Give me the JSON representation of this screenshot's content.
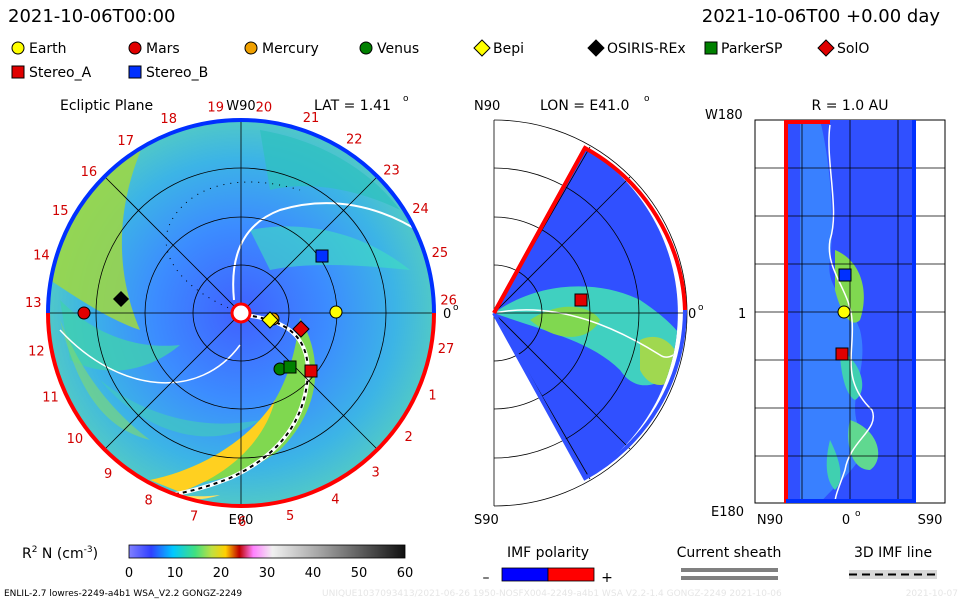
{
  "header": {
    "datetime": "2021-10-06T00:00",
    "forecast": "2021-10-06T00 +0.00 day"
  },
  "legend": {
    "items": [
      {
        "label": "Earth",
        "marker": "circle",
        "color": "#ffff00"
      },
      {
        "label": "Mars",
        "marker": "circle",
        "color": "#e00000"
      },
      {
        "label": "Mercury",
        "marker": "circle",
        "color": "#f0a000"
      },
      {
        "label": "Venus",
        "marker": "circle",
        "color": "#008000"
      },
      {
        "label": "Bepi",
        "marker": "diamond",
        "color": "#ffff00"
      },
      {
        "label": "OSIRIS-REx",
        "marker": "diamond",
        "color": "#000000"
      },
      {
        "label": "ParkerSP",
        "marker": "square",
        "color": "#008000"
      },
      {
        "label": "SolO",
        "marker": "diamond",
        "color": "#e00000"
      },
      {
        "label": "Stereo_A",
        "marker": "square",
        "color": "#e00000"
      },
      {
        "label": "Stereo_B",
        "marker": "square",
        "color": "#0030ff"
      }
    ]
  },
  "ecliptic": {
    "title": "Ecliptic Plane",
    "lat": "LAT = 1.41",
    "lat_deg": "o",
    "top_label": "W90",
    "bottom_label": "E90",
    "right_label": "0",
    "right_deg": "o",
    "carrington": [
      "19",
      "20",
      "21",
      "22",
      "23",
      "24",
      "25",
      "26",
      "27",
      "1",
      "2",
      "3",
      "4",
      "5",
      "6",
      "7",
      "8",
      "9",
      "10",
      "11",
      "12",
      "13",
      "14",
      "15",
      "16",
      "17",
      "18"
    ]
  },
  "meridional": {
    "lon": "LON = E41.0",
    "lon_deg": "o",
    "top_label": "N90",
    "bottom_label": "S90",
    "right_label": "0",
    "right_deg": "o"
  },
  "sphere": {
    "title": "R = 1.0 AU",
    "top_label": "W180",
    "bottom_label": "E180",
    "mid_label": "1",
    "x_left": "N90",
    "x_mid": "0",
    "x_mid_deg": "o",
    "x_right": "S90"
  },
  "colorbar": {
    "label": "R",
    "label_sup": "2",
    "label_rest": " N (cm",
    "label_exp": "-3",
    "label_close": ")",
    "ticks": [
      "0",
      "10",
      "20",
      "30",
      "40",
      "50",
      "60"
    ]
  },
  "imf": {
    "title": "IMF polarity",
    "minus": "–",
    "plus": "+",
    "neg_color": "#0000ff",
    "pos_color": "#ff0000"
  },
  "sheath": {
    "title": "Current sheath"
  },
  "imf3d": {
    "title": "3D IMF line"
  },
  "footer": {
    "model": "ENLIL-2.7 lowres-2249-a4b1 WSA_V2.2 GONGZ-2249",
    "run_id": "UNIQUE1037093413/2021-06-26 1950-NOSFX004-2249-a4b1 WSA V2.2-1.4 GONGZ-2249 2021-10-06",
    "date_tail": "2021-10-07"
  }
}
